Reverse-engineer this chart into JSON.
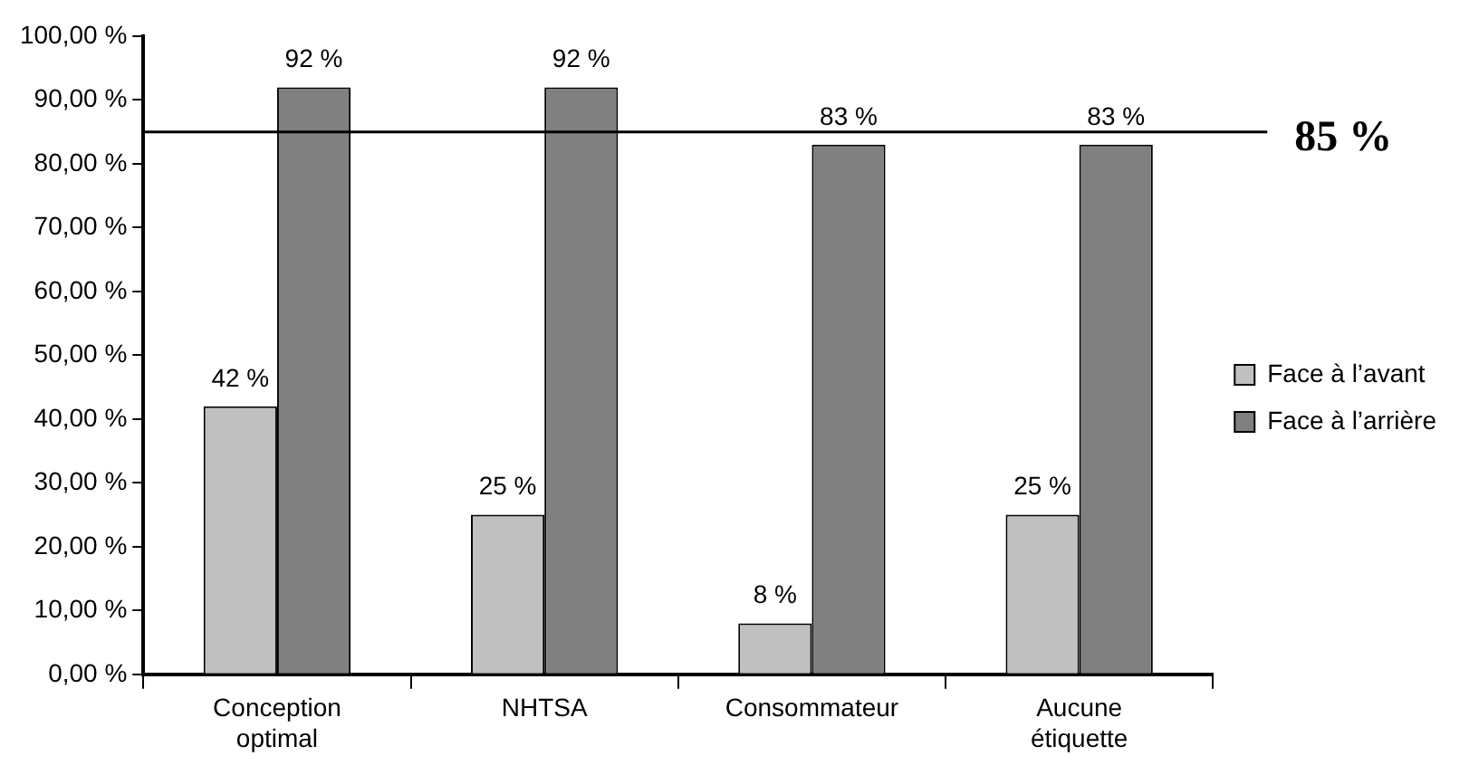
{
  "chart_data": {
    "type": "bar",
    "categories": [
      "Conception optimal",
      "NHTSA",
      "Consommateur",
      "Aucune étiquette"
    ],
    "series": [
      {
        "name": "Face à l’avant",
        "color": "#c0c0c0",
        "values": [
          42,
          25,
          8,
          25
        ],
        "value_labels": [
          "42 %",
          "25 %",
          "8 %",
          "25 %"
        ]
      },
      {
        "name": "Face à l’arrière",
        "color": "#808080",
        "values": [
          92,
          92,
          83,
          83
        ],
        "value_labels": [
          "92 %",
          "92 %",
          "83 %",
          "83 %"
        ]
      }
    ],
    "ylim": [
      0,
      100
    ],
    "yticks": [
      {
        "value": 0,
        "label": "0,00 %"
      },
      {
        "value": 10,
        "label": "10,00 %"
      },
      {
        "value": 20,
        "label": "20,00 %"
      },
      {
        "value": 30,
        "label": "30,00 %"
      },
      {
        "value": 40,
        "label": "40,00 %"
      },
      {
        "value": 50,
        "label": "50,00 %"
      },
      {
        "value": 60,
        "label": "60,00 %"
      },
      {
        "value": 70,
        "label": "70,00 %"
      },
      {
        "value": 80,
        "label": "80,00 %"
      },
      {
        "value": 90,
        "label": "90,00 %"
      },
      {
        "value": 100,
        "label": "100,00 %"
      }
    ],
    "ref_lines": [
      {
        "axis": "y",
        "value": 85,
        "label": "85 %",
        "color": "#000000"
      }
    ],
    "grid": false,
    "legend": "right"
  }
}
